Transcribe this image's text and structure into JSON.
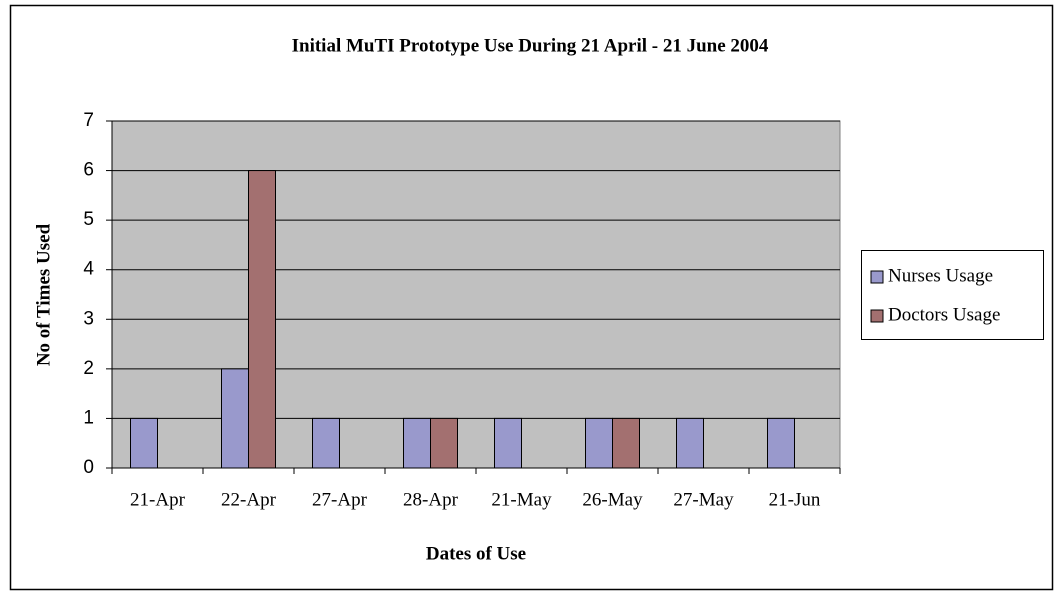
{
  "chart_data": {
    "type": "bar",
    "title": "Initial MuTI Prototype Use During 21 April - 21 June 2004",
    "x_label": "Dates of Use",
    "y_label": "No of Times Used",
    "categories": [
      "21-Apr",
      "22-Apr",
      "27-Apr",
      "28-Apr",
      "21-May",
      "26-May",
      "27-May",
      "21-Jun"
    ],
    "series": [
      {
        "name": "Nurses Usage",
        "color": "#9999cc",
        "values": [
          1,
          2,
          1,
          1,
          1,
          1,
          1,
          1
        ]
      },
      {
        "name": "Doctors Usage",
        "color": "#a37070",
        "values": [
          0,
          6,
          0,
          1,
          0,
          1,
          0,
          0
        ]
      }
    ],
    "ylim": [
      0,
      7
    ],
    "yticks": [
      0,
      1,
      2,
      3,
      4,
      5,
      6,
      7
    ],
    "grid": true,
    "legend": "right"
  }
}
